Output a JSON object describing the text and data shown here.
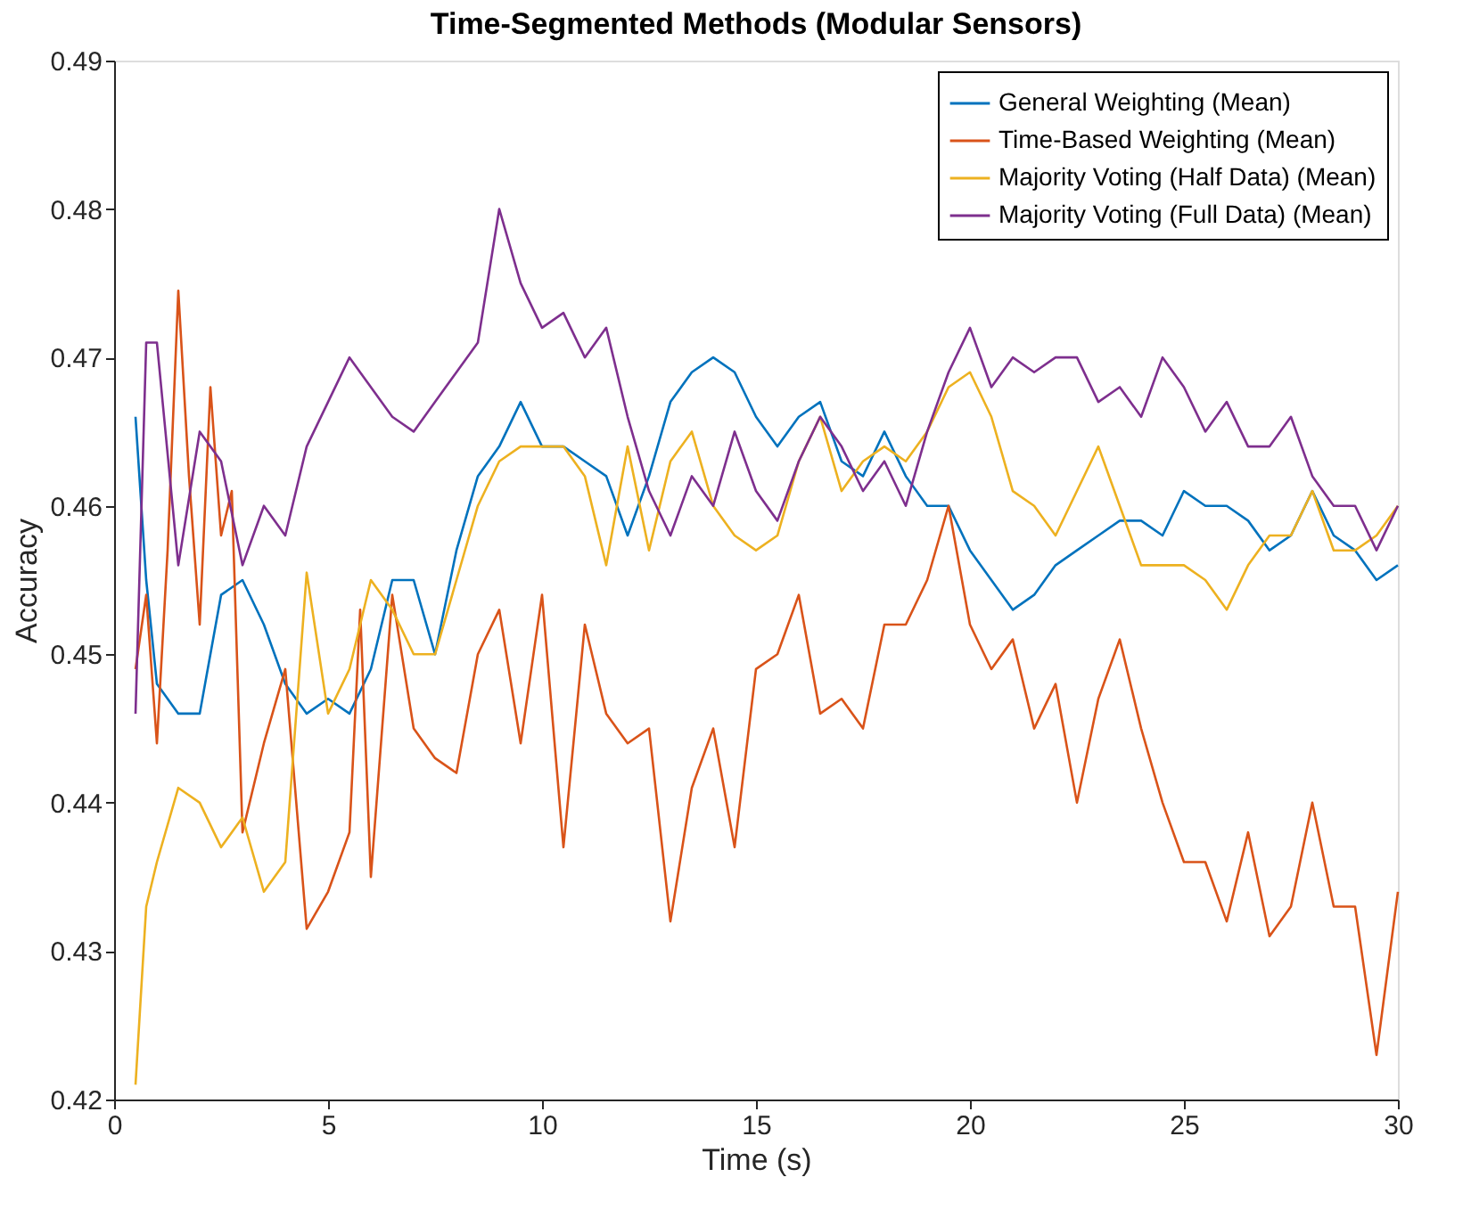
{
  "chart_data": {
    "type": "line",
    "title": "Time-Segmented Methods (Modular Sensors)",
    "xlabel": "Time (s)",
    "ylabel": "Accuracy",
    "xlim": [
      0,
      30
    ],
    "xticks": [
      0,
      5,
      10,
      15,
      20,
      25,
      30
    ],
    "ylim": [
      0.42,
      0.49
    ],
    "yticks": [
      0.42,
      0.43,
      0.44,
      0.45,
      0.46,
      0.47,
      0.48,
      0.49
    ],
    "grid": false,
    "legend": "top right",
    "line_style": "solid",
    "marker": "none",
    "series": [
      {
        "name": "General Weighting (Mean)",
        "color": "#0072bd",
        "x": [
          0.5,
          0.75,
          1,
          1.5,
          2,
          2.5,
          3,
          3.5,
          4,
          4.5,
          5,
          5.5,
          6,
          6.5,
          7,
          7.5,
          8,
          8.5,
          9,
          9.5,
          10,
          10.5,
          11,
          11.5,
          12,
          12.5,
          13,
          13.5,
          14,
          14.5,
          15,
          15.5,
          16,
          16.5,
          17,
          17.5,
          18,
          18.5,
          19,
          19.5,
          20,
          20.5,
          21,
          21.5,
          22,
          22.5,
          23,
          23.5,
          24,
          24.5,
          25,
          25.5,
          26,
          26.5,
          27,
          27.5,
          28,
          28.5,
          29,
          29.5,
          30
        ],
        "values": [
          0.466,
          0.455,
          0.448,
          0.446,
          0.446,
          0.454,
          0.455,
          0.452,
          0.448,
          0.446,
          0.447,
          0.446,
          0.449,
          0.455,
          0.455,
          0.45,
          0.457,
          0.462,
          0.464,
          0.467,
          0.464,
          0.464,
          0.463,
          0.462,
          0.458,
          0.462,
          0.467,
          0.469,
          0.47,
          0.469,
          0.466,
          0.464,
          0.466,
          0.467,
          0.463,
          0.462,
          0.465,
          0.462,
          0.46,
          0.46,
          0.457,
          0.455,
          0.453,
          0.454,
          0.456,
          0.457,
          0.458,
          0.459,
          0.459,
          0.458,
          0.461,
          0.46,
          0.46,
          0.459,
          0.457,
          0.458,
          0.461,
          0.458,
          0.457,
          0.455,
          0.456
        ]
      },
      {
        "name": "Time-Based Weighting (Mean)",
        "color": "#d95319",
        "x": [
          0.5,
          0.75,
          1,
          1.25,
          1.5,
          1.75,
          2,
          2.25,
          2.5,
          2.75,
          3,
          3.5,
          4,
          4.5,
          5,
          5.5,
          5.75,
          6,
          6.5,
          7,
          7.5,
          8,
          8.5,
          9,
          9.5,
          10,
          10.5,
          11,
          11.5,
          12,
          12.5,
          13,
          13.5,
          14,
          14.5,
          15,
          15.5,
          16,
          16.5,
          17,
          17.5,
          18,
          18.5,
          19,
          19.5,
          20,
          20.5,
          21,
          21.5,
          22,
          22.5,
          23,
          23.5,
          24,
          24.5,
          25,
          25.5,
          26,
          26.5,
          27,
          27.5,
          28,
          28.5,
          29,
          29.5,
          30
        ],
        "values": [
          0.449,
          0.454,
          0.444,
          0.457,
          0.4745,
          0.462,
          0.452,
          0.468,
          0.458,
          0.461,
          0.438,
          0.444,
          0.449,
          0.4315,
          0.434,
          0.438,
          0.453,
          0.435,
          0.454,
          0.445,
          0.443,
          0.442,
          0.45,
          0.453,
          0.444,
          0.454,
          0.437,
          0.452,
          0.446,
          0.444,
          0.445,
          0.432,
          0.441,
          0.445,
          0.437,
          0.449,
          0.45,
          0.454,
          0.446,
          0.447,
          0.445,
          0.452,
          0.452,
          0.455,
          0.46,
          0.452,
          0.449,
          0.451,
          0.445,
          0.448,
          0.44,
          0.447,
          0.451,
          0.445,
          0.44,
          0.436,
          0.436,
          0.432,
          0.438,
          0.431,
          0.433,
          0.44,
          0.433,
          0.433,
          0.423,
          0.434
        ]
      },
      {
        "name": "Majority Voting (Half Data) (Mean)",
        "color": "#edb120",
        "x": [
          0.5,
          0.75,
          1,
          1.5,
          2,
          2.5,
          3,
          3.5,
          4,
          4.5,
          5,
          5.5,
          6,
          6.5,
          7,
          7.5,
          8,
          8.5,
          9,
          9.5,
          10,
          10.5,
          11,
          11.5,
          12,
          12.5,
          13,
          13.5,
          14,
          14.5,
          15,
          15.5,
          16,
          16.5,
          17,
          17.5,
          18,
          18.5,
          19,
          19.5,
          20,
          20.5,
          21,
          21.5,
          22,
          22.5,
          23,
          23.5,
          24,
          24.5,
          25,
          25.5,
          26,
          26.5,
          27,
          27.5,
          28,
          28.5,
          29,
          29.5,
          30
        ],
        "values": [
          0.421,
          0.433,
          0.436,
          0.441,
          0.44,
          0.437,
          0.439,
          0.434,
          0.436,
          0.4555,
          0.446,
          0.449,
          0.455,
          0.453,
          0.45,
          0.45,
          0.455,
          0.46,
          0.463,
          0.464,
          0.464,
          0.464,
          0.462,
          0.456,
          0.464,
          0.457,
          0.463,
          0.465,
          0.46,
          0.458,
          0.457,
          0.458,
          0.463,
          0.466,
          0.461,
          0.463,
          0.464,
          0.463,
          0.465,
          0.468,
          0.469,
          0.466,
          0.461,
          0.46,
          0.458,
          0.461,
          0.464,
          0.46,
          0.456,
          0.456,
          0.456,
          0.455,
          0.453,
          0.456,
          0.458,
          0.458,
          0.461,
          0.457,
          0.457,
          0.458,
          0.46
        ]
      },
      {
        "name": "Majority Voting (Full Data) (Mean)",
        "color": "#7e2f8e",
        "x": [
          0.5,
          0.75,
          1,
          1.5,
          2,
          2.5,
          3,
          3.5,
          4,
          4.5,
          5,
          5.5,
          6,
          6.5,
          7,
          7.5,
          8,
          8.5,
          9,
          9.5,
          10,
          10.5,
          11,
          11.5,
          12,
          12.5,
          13,
          13.5,
          14,
          14.5,
          15,
          15.5,
          16,
          16.5,
          17,
          17.5,
          18,
          18.5,
          19,
          19.5,
          20,
          20.5,
          21,
          21.5,
          22,
          22.5,
          23,
          23.5,
          24,
          24.5,
          25,
          25.5,
          26,
          26.5,
          27,
          27.5,
          28,
          28.5,
          29,
          29.5,
          30
        ],
        "values": [
          0.446,
          0.471,
          0.471,
          0.456,
          0.465,
          0.463,
          0.456,
          0.46,
          0.458,
          0.464,
          0.467,
          0.47,
          0.468,
          0.466,
          0.465,
          0.467,
          0.469,
          0.471,
          0.48,
          0.475,
          0.472,
          0.473,
          0.47,
          0.472,
          0.466,
          0.461,
          0.458,
          0.462,
          0.46,
          0.465,
          0.461,
          0.459,
          0.463,
          0.466,
          0.464,
          0.461,
          0.463,
          0.46,
          0.465,
          0.469,
          0.472,
          0.468,
          0.47,
          0.469,
          0.47,
          0.47,
          0.467,
          0.468,
          0.466,
          0.47,
          0.468,
          0.465,
          0.467,
          0.464,
          0.464,
          0.466,
          0.462,
          0.46,
          0.46,
          0.457,
          0.46
        ]
      }
    ]
  }
}
